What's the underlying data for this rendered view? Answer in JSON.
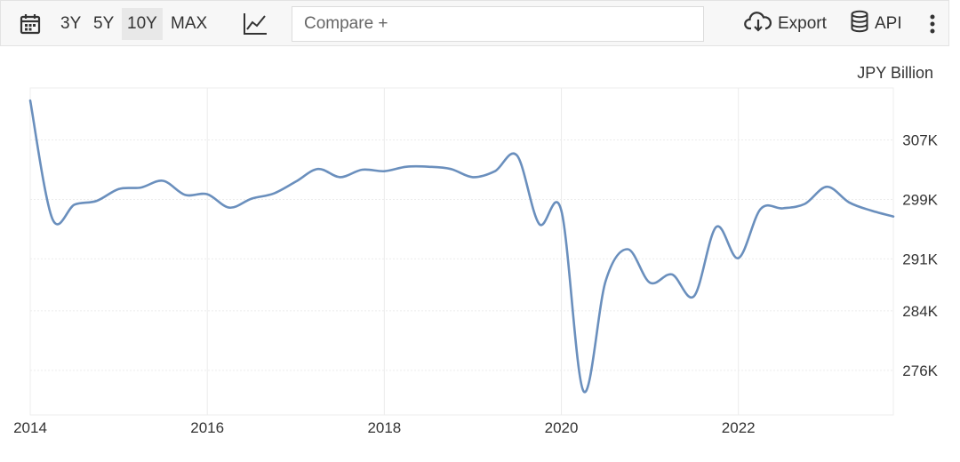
{
  "toolbar": {
    "ranges": [
      "3Y",
      "5Y",
      "10Y",
      "MAX"
    ],
    "active_range": "10Y",
    "compare_placeholder": "Compare +",
    "export_label": "Export",
    "api_label": "API",
    "icons": {
      "calendar": "calendar-icon",
      "chart_type": "line-chart-icon",
      "export": "cloud-download-icon",
      "api": "database-icon",
      "more": "more-vertical-icon"
    }
  },
  "chart_data": {
    "type": "line",
    "unit": "JPY Billion",
    "xlim": [
      2014.0,
      2023.75
    ],
    "ylim": [
      270000,
      314000
    ],
    "y_ticks": [
      276000,
      284000,
      291000,
      299000,
      307000
    ],
    "y_tick_labels": [
      "276K",
      "284K",
      "291K",
      "299K",
      "307K"
    ],
    "x_ticks": [
      2014,
      2016,
      2018,
      2020,
      2022
    ],
    "x_tick_labels": [
      "2014",
      "2016",
      "2018",
      "2020",
      "2022"
    ],
    "grid": true,
    "line_color": "#6a8fbd",
    "series": [
      {
        "x": [
          2014.0,
          2014.25,
          2014.5,
          2014.75,
          2015.0,
          2015.25,
          2015.5,
          2015.75,
          2016.0,
          2016.25,
          2016.5,
          2016.75,
          2017.0,
          2017.25,
          2017.5,
          2017.75,
          2018.0,
          2018.25,
          2018.5,
          2018.75,
          2019.0,
          2019.25,
          2019.5,
          2019.75,
          2020.0,
          2020.25,
          2020.5,
          2020.75,
          2021.0,
          2021.25,
          2021.5,
          2021.75,
          2022.0,
          2022.25,
          2022.5,
          2022.75,
          2023.0,
          2023.25,
          2023.5,
          2023.75
        ],
        "values": [
          312300,
          296400,
          298300,
          298800,
          300400,
          300600,
          301500,
          299600,
          299700,
          297900,
          299100,
          299800,
          301400,
          303100,
          302000,
          303000,
          302800,
          303400,
          303400,
          303100,
          302000,
          302800,
          304900,
          295700,
          297500,
          273200,
          288000,
          292300,
          287800,
          288900,
          286000,
          295300,
          291100,
          297700,
          297800,
          298400,
          300700,
          298600,
          297500,
          296700
        ]
      }
    ]
  }
}
